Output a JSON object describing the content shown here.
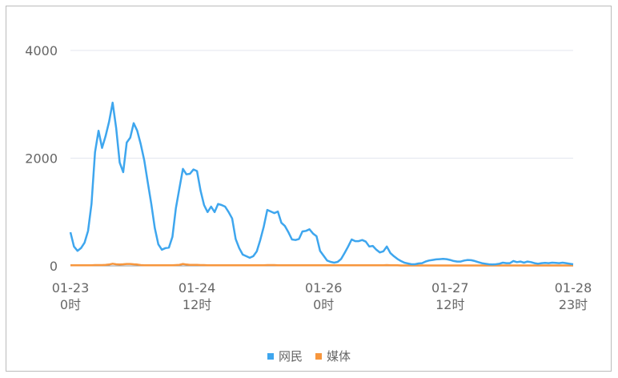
{
  "chart_data": {
    "type": "line",
    "title": "",
    "xlabel": "",
    "ylabel": "",
    "ylim": [
      0,
      4000
    ],
    "yticks": [
      0,
      2000,
      4000
    ],
    "grid": true,
    "legend_placement": "bottom",
    "x_start": "01-23 0时",
    "x_end": "01-28 23时",
    "x_unit": "hour",
    "xticks": [
      {
        "hour": 0,
        "date": "01-23",
        "time": "0时"
      },
      {
        "hour": 36,
        "date": "01-24",
        "time": "12时"
      },
      {
        "hour": 72,
        "date": "01-26",
        "time": "0时"
      },
      {
        "hour": 108,
        "date": "01-27",
        "time": "12时"
      },
      {
        "hour": 143,
        "date": "01-28",
        "time": "23时"
      }
    ],
    "series": [
      {
        "name": "网民",
        "color": "#3ea6ee",
        "values": [
          625,
          360,
          280,
          330,
          430,
          650,
          1150,
          2110,
          2510,
          2190,
          2410,
          2680,
          3030,
          2560,
          1920,
          1740,
          2290,
          2380,
          2650,
          2510,
          2260,
          1960,
          1550,
          1150,
          700,
          400,
          300,
          330,
          340,
          540,
          1070,
          1440,
          1800,
          1700,
          1710,
          1790,
          1760,
          1400,
          1130,
          1000,
          1100,
          1000,
          1150,
          1130,
          1100,
          1000,
          880,
          500,
          330,
          210,
          180,
          150,
          180,
          270,
          480,
          730,
          1040,
          1010,
          980,
          1010,
          800,
          740,
          625,
          490,
          480,
          500,
          640,
          650,
          680,
          600,
          550,
          280,
          190,
          100,
          75,
          60,
          75,
          130,
          240,
          360,
          490,
          460,
          460,
          480,
          450,
          360,
          370,
          300,
          250,
          270,
          360,
          240,
          180,
          130,
          90,
          60,
          45,
          30,
          30,
          45,
          50,
          80,
          100,
          110,
          120,
          125,
          130,
          125,
          110,
          90,
          80,
          80,
          100,
          110,
          105,
          90,
          70,
          50,
          40,
          30,
          25,
          30,
          40,
          60,
          50,
          50,
          90,
          70,
          80,
          60,
          80,
          70,
          50,
          40,
          50,
          55,
          50,
          60,
          55,
          50,
          60,
          50,
          40,
          30
        ]
      },
      {
        "name": "媒体",
        "color": "#f7963d",
        "values": [
          10,
          10,
          10,
          10,
          10,
          12,
          12,
          15,
          15,
          15,
          20,
          25,
          40,
          30,
          25,
          30,
          35,
          35,
          30,
          25,
          15,
          12,
          10,
          10,
          10,
          10,
          10,
          10,
          10,
          12,
          15,
          20,
          35,
          25,
          20,
          20,
          20,
          15,
          15,
          12,
          12,
          12,
          12,
          10,
          10,
          10,
          10,
          10,
          10,
          10,
          10,
          10,
          10,
          10,
          10,
          12,
          15,
          15,
          15,
          12,
          12,
          10,
          10,
          10,
          10,
          10,
          10,
          10,
          10,
          10,
          10,
          10,
          10,
          10,
          10,
          10,
          10,
          10,
          10,
          10,
          12,
          12,
          12,
          12,
          10,
          10,
          10,
          10,
          10,
          10,
          15,
          10,
          10,
          10,
          8,
          8,
          8,
          8,
          8,
          8,
          8,
          8,
          8,
          8,
          8,
          8,
          8,
          8,
          8,
          8,
          8,
          8,
          8,
          8,
          8,
          8,
          8,
          8,
          8,
          8,
          8,
          8,
          8,
          8,
          8,
          8,
          8,
          8,
          8,
          8,
          8,
          8,
          8,
          8,
          8,
          8,
          8,
          8,
          8,
          8,
          8,
          8,
          8,
          8
        ]
      }
    ]
  }
}
